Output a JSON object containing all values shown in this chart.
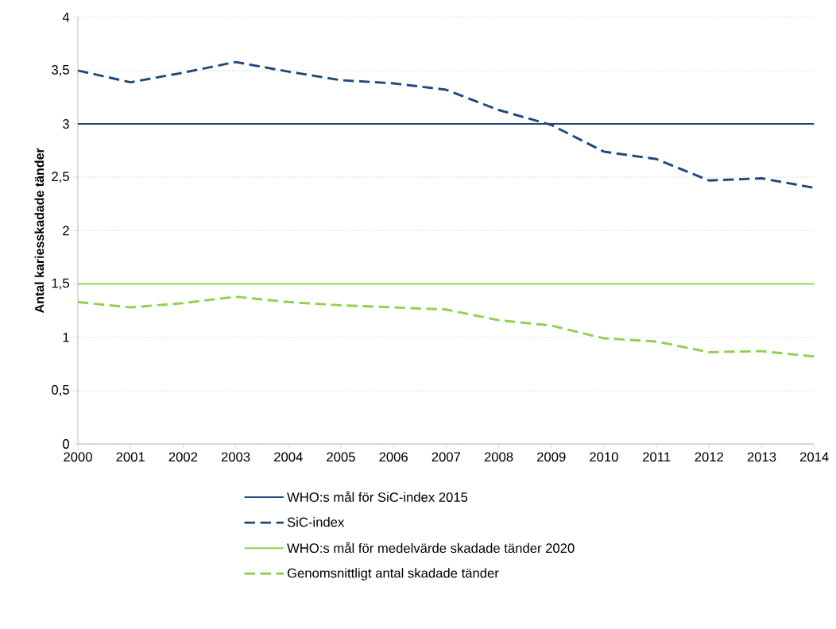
{
  "chart_data": {
    "type": "line",
    "ylabel": "Antal kariesskadade tänder",
    "x": [
      2000,
      2001,
      2002,
      2003,
      2004,
      2005,
      2006,
      2007,
      2008,
      2009,
      2010,
      2011,
      2012,
      2013,
      2014
    ],
    "xlim": [
      2000,
      2014
    ],
    "xticks": [
      2000,
      2001,
      2002,
      2003,
      2004,
      2005,
      2006,
      2007,
      2008,
      2009,
      2010,
      2011,
      2012,
      2013,
      2014
    ],
    "ylim": [
      0,
      4
    ],
    "yticks": [
      0,
      {
        "value": 0.5,
        "label": "0,5"
      },
      1,
      {
        "value": 1.5,
        "label": "1,5"
      },
      2,
      {
        "value": 2.5,
        "label": "2,5"
      },
      3,
      {
        "value": 3.5,
        "label": "3,5"
      },
      4
    ],
    "grid": "y",
    "legend": "bottom",
    "series": [
      {
        "name": "WHO:s mål för SiC-index 2015",
        "color": "#1f497d",
        "line_style": "solid",
        "values": [
          3,
          3,
          3,
          3,
          3,
          3,
          3,
          3,
          3,
          3,
          3,
          3,
          3,
          3,
          3
        ]
      },
      {
        "name": "SiC-index",
        "color": "#1f497d",
        "line_style": "dashed",
        "values": [
          3.5,
          3.39,
          3.48,
          3.58,
          3.49,
          3.41,
          3.38,
          3.32,
          3.13,
          2.99,
          2.74,
          2.67,
          2.47,
          2.49,
          2.4
        ]
      },
      {
        "name": "WHO:s mål för medelvärde skadade tänder 2020",
        "color": "#92d050",
        "line_style": "solid",
        "values": [
          1.5,
          1.5,
          1.5,
          1.5,
          1.5,
          1.5,
          1.5,
          1.5,
          1.5,
          1.5,
          1.5,
          1.5,
          1.5,
          1.5,
          1.5
        ]
      },
      {
        "name": "Genomsnittligt antal skadade tänder",
        "color": "#92d050",
        "line_style": "dashed",
        "values": [
          1.33,
          1.28,
          1.32,
          1.38,
          1.33,
          1.3,
          1.28,
          1.26,
          1.16,
          1.11,
          0.99,
          0.96,
          0.86,
          0.87,
          0.82
        ]
      }
    ]
  }
}
